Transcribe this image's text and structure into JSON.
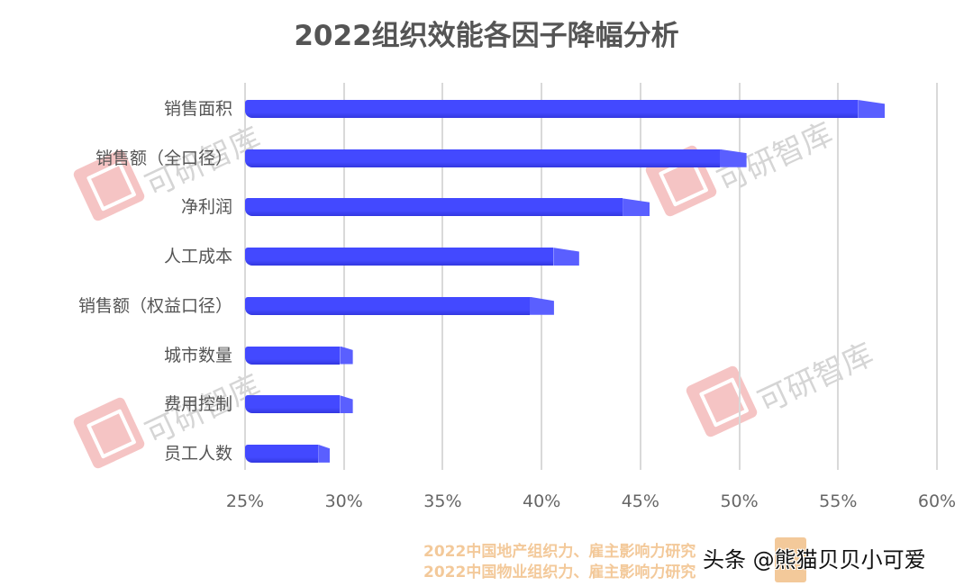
{
  "chart_data": {
    "type": "bar",
    "orientation": "horizontal",
    "title": "2022组织效能各因子降幅分析",
    "xlabel": "",
    "ylabel": "",
    "xlim": [
      25,
      60
    ],
    "x_ticks": [
      "25%",
      "30%",
      "35%",
      "40%",
      "45%",
      "50%",
      "55%",
      "60%"
    ],
    "grid": "vertical",
    "legend": "none",
    "categories": [
      "销售面积",
      "销售额（全口径）",
      "净利润",
      "人工成本",
      "销售额（权益口径）",
      "城市数量",
      "费用控制",
      "员工人数"
    ],
    "values": [
      56.0,
      49.0,
      44.1,
      40.6,
      39.4,
      29.8,
      29.8,
      28.7
    ],
    "unit": "%",
    "bar_color": "#4349ff"
  },
  "labels": {
    "y": [
      "销售面积",
      "销售额（全口径）",
      "净利润",
      "人工成本",
      "销售额（权益口径）",
      "城市数量",
      "费用控制",
      "员工人数"
    ],
    "x": [
      "25%",
      "30%",
      "35%",
      "40%",
      "45%",
      "50%",
      "55%",
      "60%"
    ]
  },
  "watermark": {
    "text": "可研智库",
    "logo_color": "#e45a5a"
  },
  "footer": {
    "line1": "2022中国地产组织力、雇主影响力研究",
    "line2": "2022中国物业组织力、雇主影响力研究",
    "color": "#f3c99a"
  },
  "attribution": "头条 @熊猫贝贝小可爱"
}
